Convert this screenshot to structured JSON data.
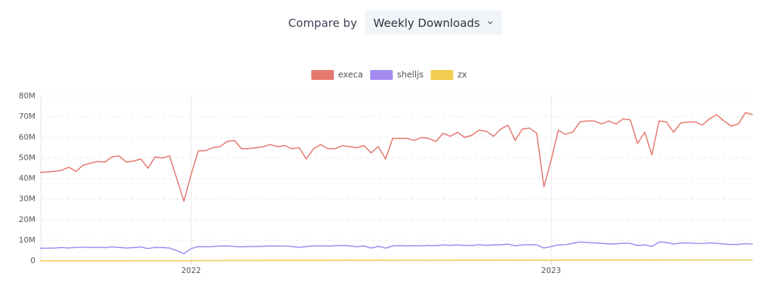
{
  "compare": {
    "label": "Compare by",
    "selected": "Weekly Downloads"
  },
  "chart_data": {
    "type": "line",
    "x": [
      2021.58,
      2021.6,
      2021.62,
      2021.64,
      2021.66,
      2021.68,
      2021.7,
      2021.72,
      2021.74,
      2021.76,
      2021.78,
      2021.8,
      2021.82,
      2021.84,
      2021.86,
      2021.88,
      2021.9,
      2021.92,
      2021.94,
      2021.96,
      2021.98,
      2022,
      2022.02,
      2022.04,
      2022.06,
      2022.08,
      2022.1,
      2022.12,
      2022.14,
      2022.16,
      2022.18,
      2022.2,
      2022.22,
      2022.24,
      2022.26,
      2022.28,
      2022.3,
      2022.32,
      2022.34,
      2022.36,
      2022.38,
      2022.4,
      2022.42,
      2022.44,
      2022.46,
      2022.48,
      2022.5,
      2022.52,
      2022.54,
      2022.56,
      2022.58,
      2022.6,
      2022.62,
      2022.64,
      2022.66,
      2022.68,
      2022.7,
      2022.72,
      2022.74,
      2022.76,
      2022.78,
      2022.8,
      2022.82,
      2022.84,
      2022.86,
      2022.88,
      2022.9,
      2022.92,
      2022.94,
      2022.96,
      2022.98,
      2023,
      2023.02,
      2023.04,
      2023.06,
      2023.08,
      2023.1,
      2023.12,
      2023.14,
      2023.16,
      2023.18,
      2023.2,
      2023.22,
      2023.24,
      2023.26,
      2023.28,
      2023.3,
      2023.32,
      2023.34,
      2023.36,
      2023.38,
      2023.4,
      2023.42,
      2023.44,
      2023.46,
      2023.48,
      2023.5,
      2023.52,
      2023.54,
      2023.56
    ],
    "series": [
      {
        "name": "execa",
        "color": "#e5796f",
        "values": [
          43000000.0,
          43200000.0,
          43500000.0,
          44000000.0,
          45500000.0,
          43500000.0,
          46500000.0,
          47500000.0,
          48300000.0,
          48000000.0,
          50500000.0,
          51000000.0,
          48000000.0,
          48500000.0,
          49500000.0,
          45000000.0,
          50500000.0,
          50000000.0,
          51000000.0,
          40000000.0,
          29000000.0,
          42000000.0,
          53500000.0,
          53500000.0,
          55000000.0,
          55500000.0,
          58000000.0,
          58500000.0,
          54500000.0,
          54500000.0,
          55000000.0,
          55500000.0,
          56500000.0,
          55500000.0,
          56000000.0,
          54500000.0,
          55000000.0,
          49500000.0,
          54500000.0,
          56500000.0,
          54500000.0,
          54500000.0,
          56000000.0,
          55500000.0,
          55000000.0,
          56000000.0,
          52500000.0,
          55500000.0,
          49500000.0,
          59500000.0,
          59500000.0,
          59500000.0,
          58500000.0,
          60000000.0,
          59500000.0,
          58000000.0,
          62000000.0,
          60500000.0,
          62500000.0,
          60000000.0,
          61000000.0,
          63500000.0,
          63000000.0,
          60500000.0,
          64000000.0,
          66000000.0,
          58500000.0,
          64000000.0,
          64500000.0,
          62000000.0,
          36000000.0,
          49000000.0,
          63500000.0,
          61500000.0,
          62500000.0,
          67500000.0,
          68000000.0,
          68000000.0,
          66500000.0,
          68000000.0,
          66500000.0,
          69000000.0,
          68500000.0,
          57000000.0,
          62500000.0,
          51500000.0,
          68000000.0,
          67500000.0,
          62500000.0,
          67000000.0,
          67500000.0,
          67500000.0,
          66000000.0,
          69000000.0,
          71000000.0,
          68000000.0,
          65500000.0,
          66500000.0,
          72000000.0,
          71000000.0
        ]
      },
      {
        "name": "shelljs",
        "color": "#a48cf0",
        "values": [
          6200000.0,
          6200000.0,
          6300000.0,
          6500000.0,
          6300000.0,
          6600000.0,
          6700000.0,
          6600000.0,
          6700000.0,
          6500000.0,
          6800000.0,
          6600000.0,
          6300000.0,
          6500000.0,
          6800000.0,
          6000000.0,
          6600000.0,
          6500000.0,
          6300000.0,
          5000000.0,
          3500000.0,
          6000000.0,
          7000000.0,
          6900000.0,
          7000000.0,
          7200000.0,
          7300000.0,
          7000000.0,
          6900000.0,
          7000000.0,
          7000000.0,
          7100000.0,
          7300000.0,
          7200000.0,
          7200000.0,
          7000000.0,
          6600000.0,
          7000000.0,
          7300000.0,
          7300000.0,
          7200000.0,
          7400000.0,
          7500000.0,
          7300000.0,
          6900000.0,
          7300000.0,
          6300000.0,
          7100000.0,
          6200000.0,
          7300000.0,
          7400000.0,
          7300000.0,
          7400000.0,
          7300000.0,
          7500000.0,
          7400000.0,
          7800000.0,
          7600000.0,
          7800000.0,
          7500000.0,
          7500000.0,
          7900000.0,
          7600000.0,
          7800000.0,
          7800000.0,
          8200000.0,
          7300000.0,
          7800000.0,
          7900000.0,
          7800000.0,
          6300000.0,
          7000000.0,
          7800000.0,
          7900000.0,
          8500000.0,
          9200000.0,
          9000000.0,
          8800000.0,
          8500000.0,
          8300000.0,
          8300000.0,
          8600000.0,
          8500000.0,
          7500000.0,
          7800000.0,
          7000000.0,
          9200000.0,
          9000000.0,
          8200000.0,
          8700000.0,
          8800000.0,
          8600000.0,
          8400000.0,
          8800000.0,
          8600000.0,
          8200000.0,
          8000000.0,
          8000000.0,
          8400000.0,
          8200000.0
        ]
      },
      {
        "name": "zx",
        "color": "#f2cd4f",
        "values": [
          100000.0,
          100000.0,
          100000.0,
          100000.0,
          100000.0,
          100000.0,
          100000.0,
          100000.0,
          100000.0,
          100000.0,
          120000.0,
          120000.0,
          120000.0,
          130000.0,
          130000.0,
          130000.0,
          140000.0,
          140000.0,
          140000.0,
          130000.0,
          120000.0,
          150000.0,
          180000.0,
          200000.0,
          200000.0,
          220000.0,
          230000.0,
          240000.0,
          240000.0,
          250000.0,
          250000.0,
          260000.0,
          260000.0,
          270000.0,
          270000.0,
          280000.0,
          280000.0,
          280000.0,
          290000.0,
          290000.0,
          300000.0,
          300000.0,
          300000.0,
          310000.0,
          310000.0,
          320000.0,
          320000.0,
          320000.0,
          320000.0,
          330000.0,
          330000.0,
          340000.0,
          340000.0,
          350000.0,
          350000.0,
          350000.0,
          360000.0,
          360000.0,
          370000.0,
          370000.0,
          380000.0,
          380000.0,
          390000.0,
          390000.0,
          400000.0,
          400000.0,
          380000.0,
          400000.0,
          410000.0,
          410000.0,
          350000.0,
          380000.0,
          420000.0,
          430000.0,
          440000.0,
          450000.0,
          450000.0,
          460000.0,
          460000.0,
          470000.0,
          470000.0,
          480000.0,
          480000.0,
          450000.0,
          470000.0,
          440000.0,
          490000.0,
          500000.0,
          490000.0,
          500000.0,
          500000.0,
          510000.0,
          510000.0,
          520000.0,
          520000.0,
          520000.0,
          510000.0,
          520000.0,
          530000.0,
          530000.0
        ]
      }
    ],
    "xlim": [
      2021.583,
      2023.558
    ],
    "xticks": [
      2022,
      2023
    ],
    "ylim": [
      0,
      80000000
    ],
    "yticks": [
      0,
      {
        "value": 10000000,
        "label": "10M"
      },
      {
        "value": 20000000,
        "label": "20M"
      },
      {
        "value": 30000000,
        "label": "30M"
      },
      {
        "value": 40000000,
        "label": "40M"
      },
      {
        "value": 50000000,
        "label": "50M"
      },
      {
        "value": 60000000,
        "label": "60M"
      },
      {
        "value": 70000000,
        "label": "70M"
      },
      {
        "value": 80000000,
        "label": "80M"
      }
    ],
    "grid": true,
    "legend": "top"
  }
}
